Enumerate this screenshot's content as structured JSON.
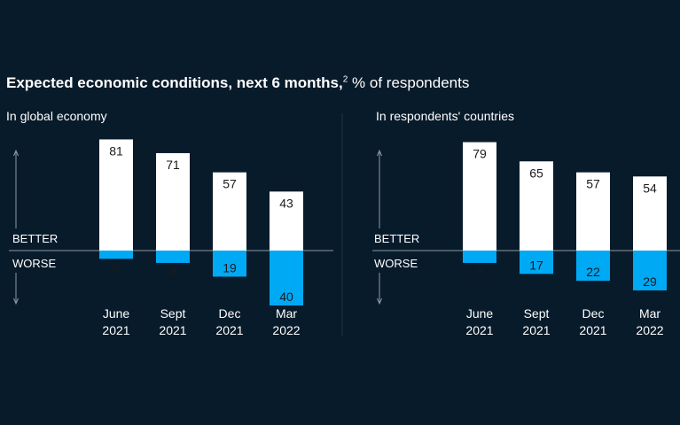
{
  "title": {
    "main": "Expected economic conditions, next 6 months,",
    "footnote": "2",
    "suffix": "% of respondents"
  },
  "chart_data": [
    {
      "type": "bar",
      "subtitle": "In global economy",
      "categories": [
        [
          "June",
          "2021"
        ],
        [
          "Sept",
          "2021"
        ],
        [
          "Dec",
          "2021"
        ],
        [
          "Mar",
          "2022"
        ]
      ],
      "series": [
        {
          "name": "BETTER",
          "values": [
            81,
            71,
            57,
            43
          ]
        },
        {
          "name": "WORSE",
          "values": [
            6,
            9,
            19,
            40
          ]
        }
      ]
    },
    {
      "type": "bar",
      "subtitle": "In respondents' countries",
      "categories": [
        [
          "June",
          "2021"
        ],
        [
          "Sept",
          "2021"
        ],
        [
          "Dec",
          "2021"
        ],
        [
          "Mar",
          "2022"
        ]
      ],
      "series": [
        {
          "name": "BETTER",
          "values": [
            79,
            65,
            57,
            54
          ]
        },
        {
          "name": "WORSE",
          "values": [
            9,
            17,
            22,
            29
          ]
        }
      ]
    }
  ],
  "colors": {
    "background": "#081b2b",
    "better": "#ffffff",
    "worse": "#00a9f4",
    "text": "#ffffff",
    "axis": "#8d9aa6"
  }
}
